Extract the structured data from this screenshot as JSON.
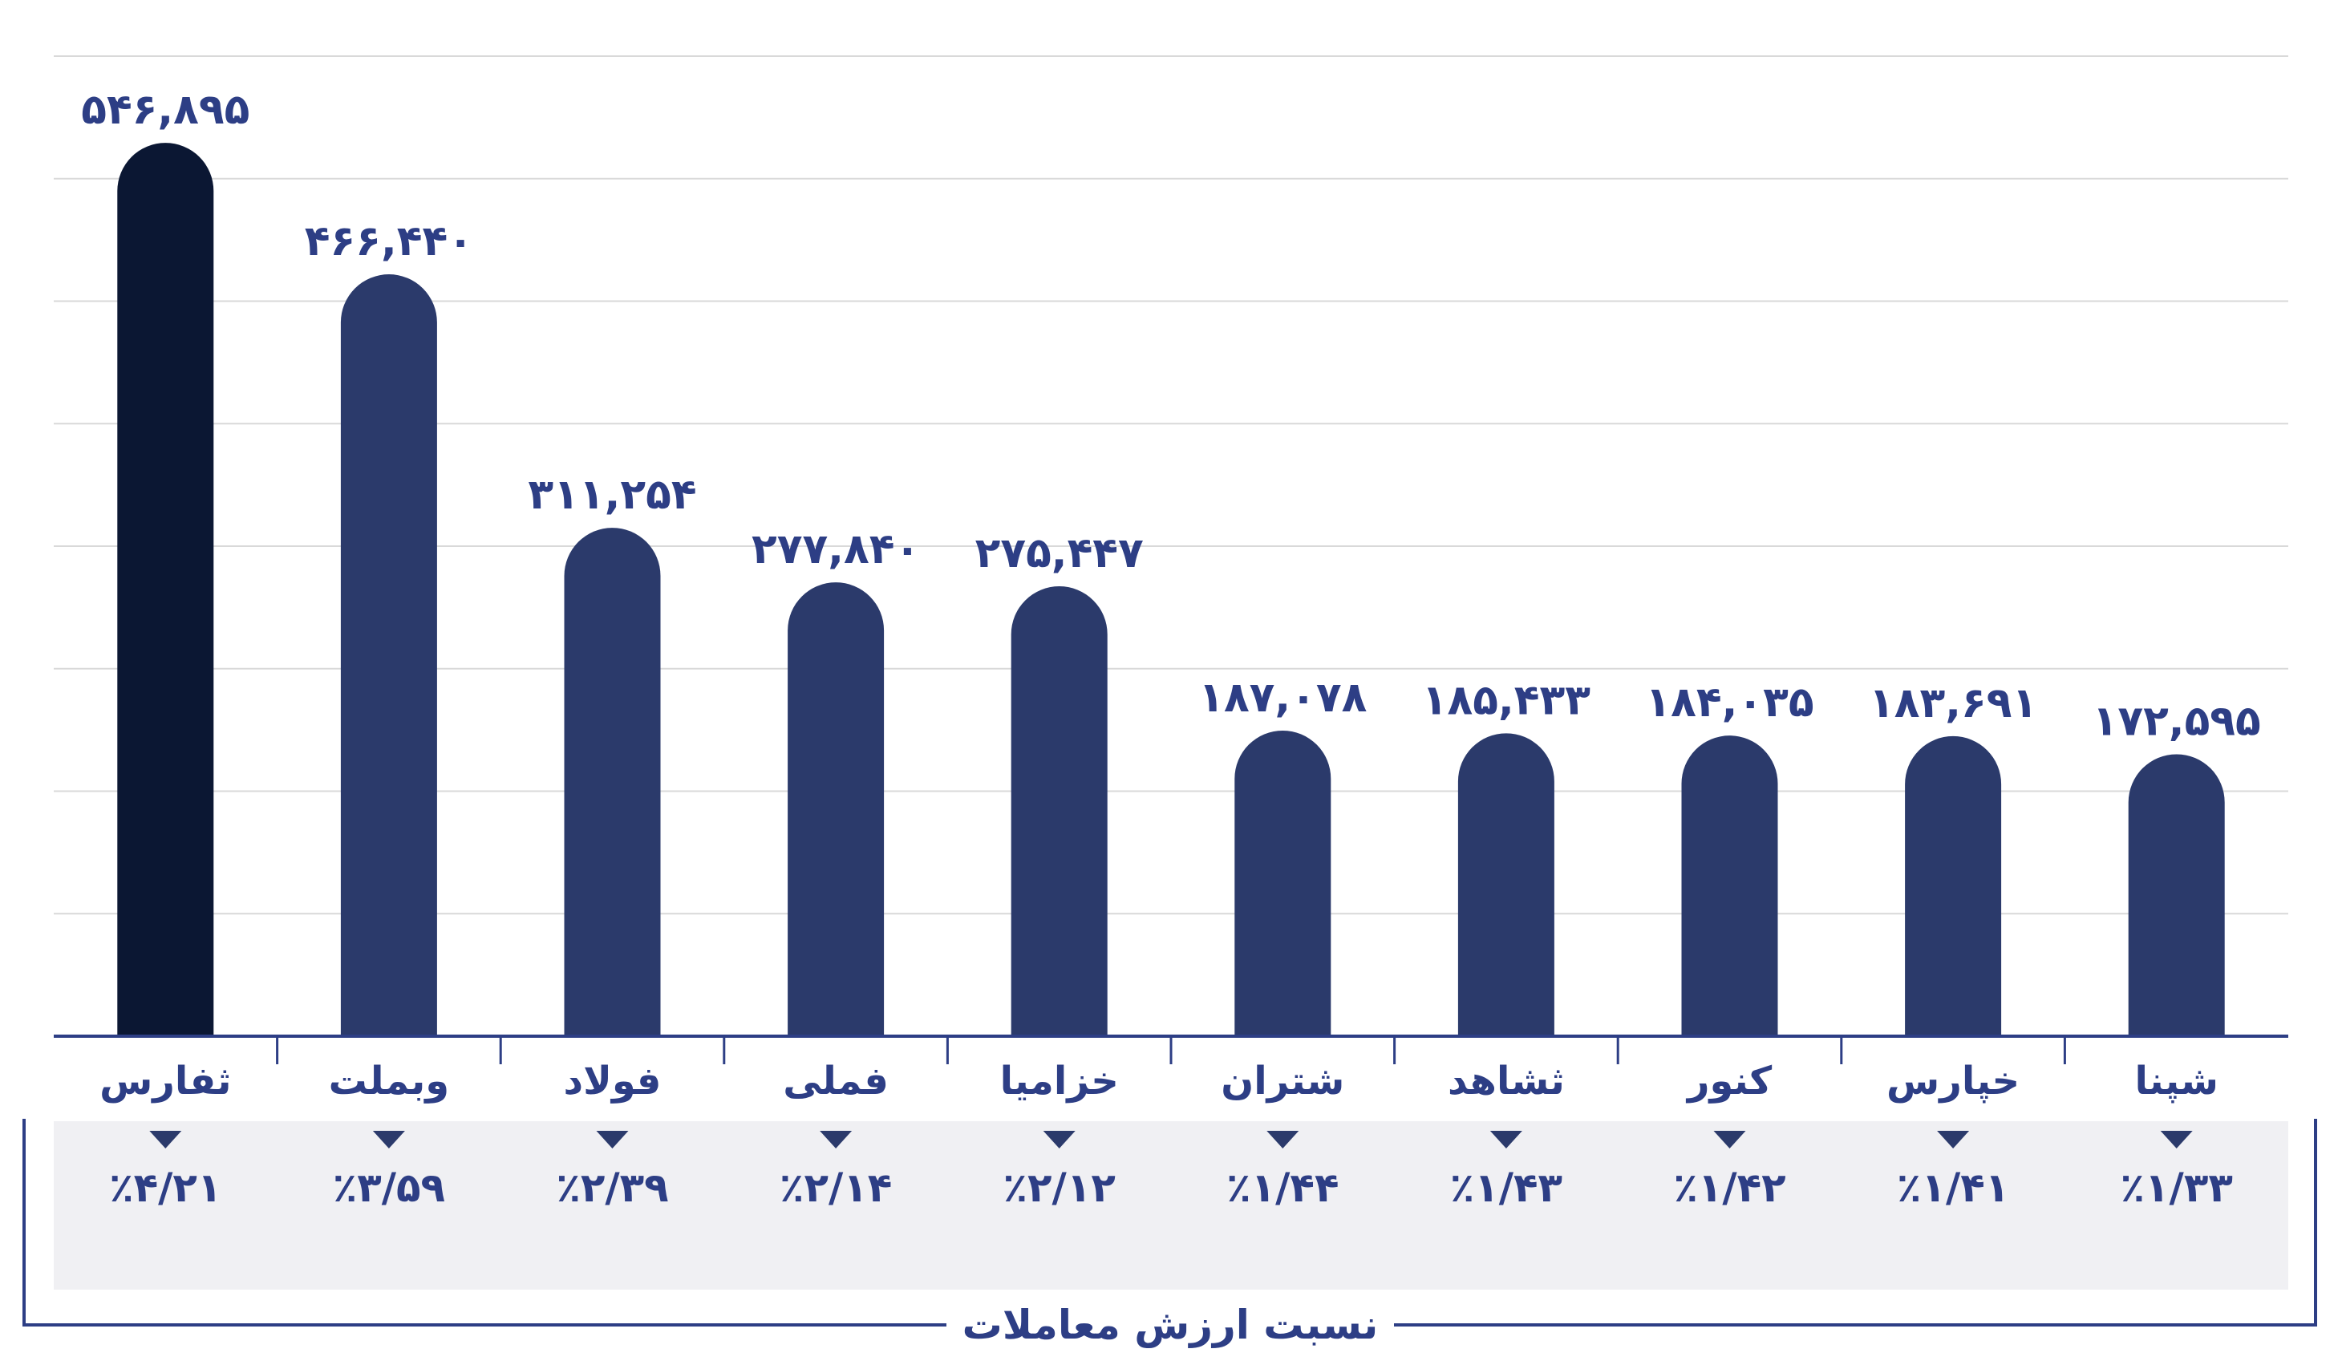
{
  "chart_data": {
    "type": "bar",
    "categories": [
      "ثفارس",
      "وبملت",
      "فولاد",
      "فملی",
      "خزامیا",
      "شتران",
      "ثشاهد",
      "کنور",
      "خپارس",
      "شپنا"
    ],
    "values": [
      546895,
      466440,
      311254,
      277840,
      275447,
      187078,
      185433,
      184035,
      183691,
      172595
    ],
    "value_labels": [
      "۵۴۶,۸۹۵",
      "۴۶۶,۴۴۰",
      "۳۱۱,۲۵۴",
      "۲۷۷,۸۴۰",
      "۲۷۵,۴۴۷",
      "۱۸۷,۰۷۸",
      "۱۸۵,۴۳۳",
      "۱۸۴,۰۳۵",
      "۱۸۳,۶۹۱",
      "۱۷۲,۵۹۵"
    ],
    "share_labels": [
      "٪۴/۲۱",
      "٪۳/۵۹",
      "٪۲/۳۹",
      "٪۲/۱۴",
      "٪۲/۱۲",
      "٪۱/۴۴",
      "٪۱/۴۳",
      "٪۱/۴۲",
      "٪۱/۴۱",
      "٪۱/۳۳"
    ],
    "share_title": "نسبت ارزش معاملات",
    "ylim": [
      0,
      600000
    ],
    "grid": true,
    "colors": {
      "highlight_bar": "#0b1733",
      "bar": "#2b3a6b",
      "label": "#2d3e85",
      "axis": "#2d3e85",
      "grid": "#d9d9d9",
      "share_band": "#f0f0f3"
    }
  }
}
